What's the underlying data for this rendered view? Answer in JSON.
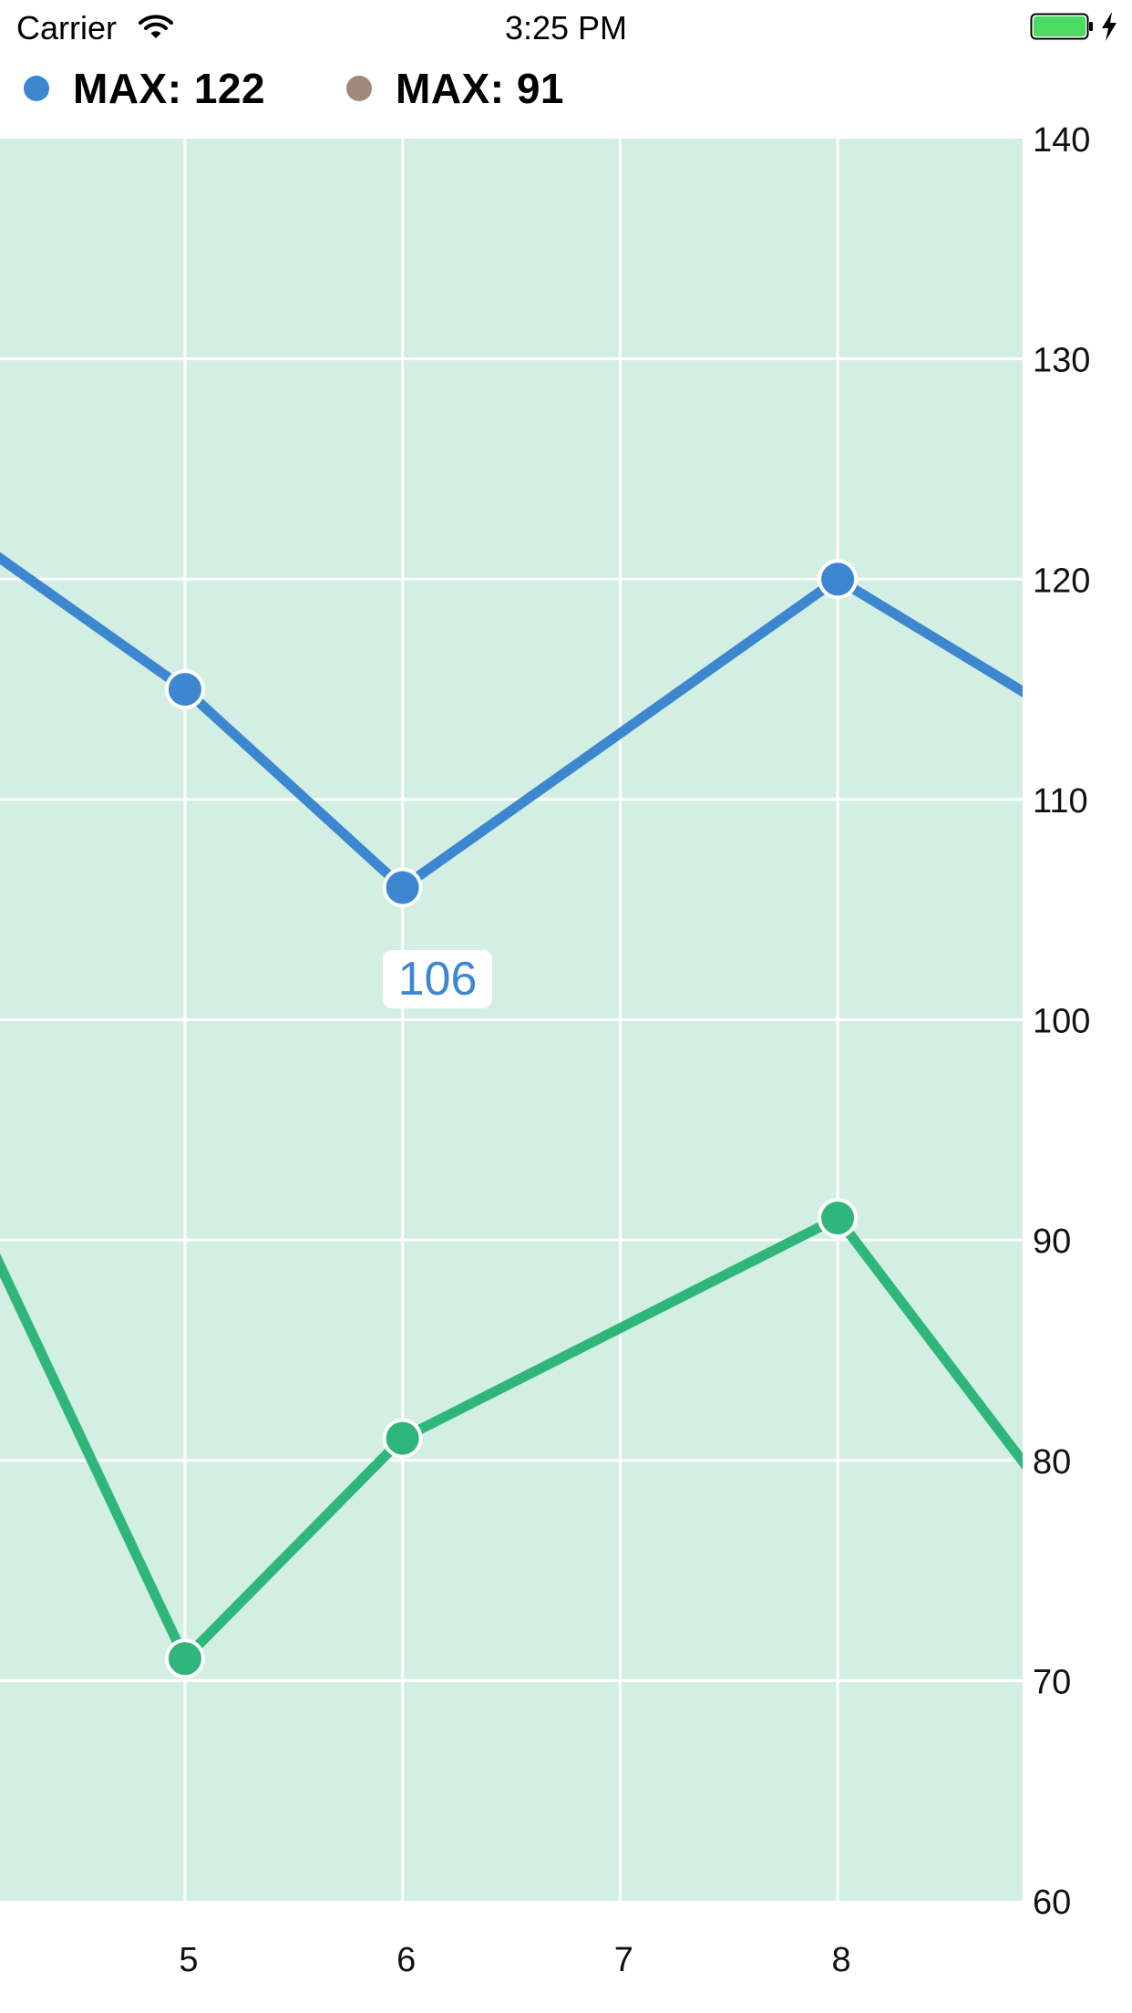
{
  "status_bar": {
    "carrier": "Carrier",
    "time": "3:25 PM",
    "battery_color": "#4cd964"
  },
  "legend": [
    {
      "label": "MAX: 122",
      "color": "#3d87d0"
    },
    {
      "label": "MAX: 91",
      "color": "#a0897a"
    }
  ],
  "tooltip": {
    "value": "106",
    "color": "#3d87d0"
  },
  "chart_data": {
    "type": "line",
    "background": "#d3eee2",
    "grid": true,
    "y_axis": {
      "position": "right",
      "ylim": [
        60,
        140
      ],
      "ticks": [
        60,
        70,
        80,
        90,
        100,
        110,
        120,
        130,
        140
      ]
    },
    "x_axis": {
      "xlim": [
        4.15,
        8.85
      ],
      "ticks": [
        5,
        6,
        7,
        8
      ]
    },
    "series": [
      {
        "color": "#3d87d0",
        "points": [
          {
            "x": 4.0,
            "y": 122
          },
          {
            "x": 5,
            "y": 115
          },
          {
            "x": 6,
            "y": 106
          },
          {
            "x": 8,
            "y": 120
          },
          {
            "x": 9,
            "y": 114
          }
        ],
        "markers": [
          5,
          6,
          8
        ]
      },
      {
        "color": "#2fb67a",
        "points": [
          {
            "x": 4.0,
            "y": 92
          },
          {
            "x": 5,
            "y": 71
          },
          {
            "x": 6,
            "y": 81
          },
          {
            "x": 8,
            "y": 91
          },
          {
            "x": 9,
            "y": 78
          }
        ],
        "markers": [
          5,
          6,
          8
        ]
      }
    ],
    "highlight": {
      "series": 0,
      "x": 6,
      "y": 106
    }
  }
}
